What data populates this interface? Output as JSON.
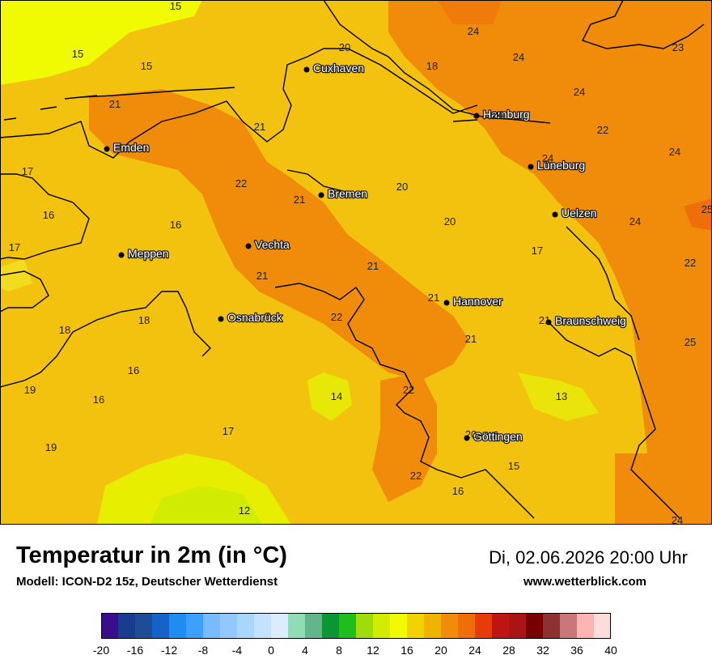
{
  "title": "Temperatur in 2m (in °C)",
  "subtitle": "Modell: ICON-D2 15z, Deutscher Wetterdienst",
  "datetime": "Di, 02.06.2026 20:00 Uhr",
  "website": "www.wetterblick.com",
  "legend": {
    "colors": [
      "#3b0c8c",
      "#173d8c",
      "#1e4d96",
      "#1463c8",
      "#1e8cf0",
      "#3ca0ff",
      "#78bbff",
      "#92c8ff",
      "#a8d6ff",
      "#c4e2ff",
      "#dcecff",
      "#90dcb4",
      "#64b48c",
      "#0a9632",
      "#1ebe1e",
      "#a0dc0a",
      "#d2ec00",
      "#f0fa00",
      "#f0d200",
      "#f0b400",
      "#f08c0a",
      "#f06e0a",
      "#e63c0a",
      "#be1414",
      "#aa1414",
      "#780000",
      "#8c3232",
      "#c87878",
      "#ffb4b4",
      "#ffdcdc"
    ],
    "ticks": [
      "-20",
      "-16",
      "-12",
      "-8",
      "-4",
      "0",
      "4",
      "8",
      "12",
      "16",
      "20",
      "24",
      "28",
      "32",
      "36",
      "40"
    ]
  },
  "cities": [
    {
      "name": "Cuxhaven"
    },
    {
      "name": "Hamburg"
    },
    {
      "name": "Emden"
    },
    {
      "name": "Lüneburg"
    },
    {
      "name": "Bremen"
    },
    {
      "name": "Uelzen"
    },
    {
      "name": "Vechta"
    },
    {
      "name": "Meppen"
    },
    {
      "name": "Hannover"
    },
    {
      "name": "Osnabrück"
    },
    {
      "name": "Braunschweig"
    },
    {
      "name": "Göttingen"
    }
  ],
  "temperatures": [
    "15",
    "15",
    "15",
    "20",
    "18",
    "24",
    "24",
    "23",
    "24",
    "21",
    "21",
    "22",
    "24",
    "24",
    "24",
    "17",
    "22",
    "21",
    "20",
    "16",
    "20",
    "17",
    "16",
    "21",
    "24",
    "25",
    "21",
    "22",
    "21",
    "17",
    "18",
    "18",
    "21",
    "21",
    "16",
    "14",
    "22",
    "13",
    "19",
    "16",
    "20",
    "17",
    "19",
    "15",
    "22",
    "16",
    "12",
    "24",
    "22",
    "25"
  ]
}
